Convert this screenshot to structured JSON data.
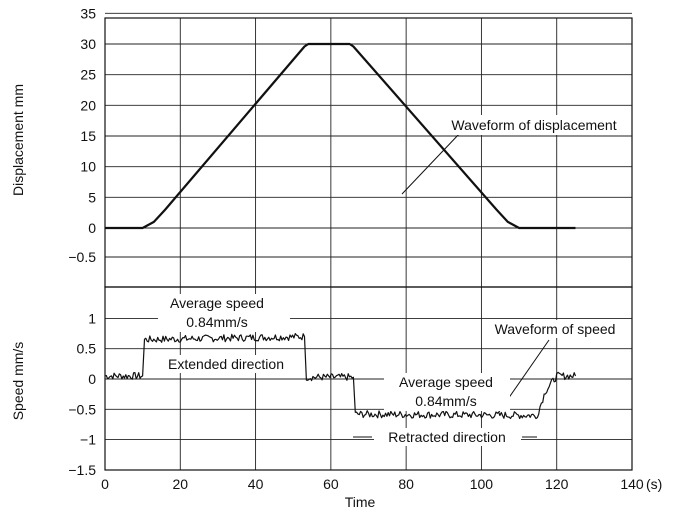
{
  "chart_data": [
    {
      "type": "line",
      "panel": "top",
      "ylabel": "Displacement  mm",
      "xlim": [
        0,
        140
      ],
      "ylim": [
        -1,
        35
      ],
      "yticks": [
        "35",
        "30",
        "25",
        "20",
        "15",
        "10",
        "5",
        "0",
        "−0.5"
      ],
      "grid": true,
      "series": [
        {
          "name": "Waveform of displacement",
          "x": [
            0,
            10,
            13,
            16,
            53,
            54,
            65,
            66,
            104,
            107,
            110,
            125
          ],
          "y": [
            0,
            0,
            1,
            3,
            29.6,
            30,
            30,
            29.6,
            3,
            1,
            0,
            0
          ]
        }
      ],
      "annotations": [
        {
          "text": "Waveform of displacement",
          "target_x": 101,
          "target_y": 9
        }
      ]
    },
    {
      "type": "line",
      "panel": "bottom",
      "ylabel": "Speed  mm/s",
      "xlabel": "Time",
      "xunit": "(s)",
      "xlim": [
        0,
        140
      ],
      "ylim": [
        -1.5,
        1
      ],
      "xticks": [
        "0",
        "20",
        "40",
        "60",
        "80",
        "100",
        "120",
        "140"
      ],
      "yticks": [
        "1",
        "0.5",
        "0",
        "−0.5",
        "−1",
        "−1.5"
      ],
      "grid": true,
      "series": [
        {
          "name": "Waveform of speed",
          "x": [
            0,
            10,
            10.5,
            53,
            53.5,
            66,
            66.5,
            114,
            114.5,
            117,
            120,
            125
          ],
          "y": [
            0.05,
            0.05,
            0.65,
            0.7,
            0.03,
            0.03,
            -0.58,
            -0.6,
            -0.65,
            -0.2,
            0.05,
            0.05
          ],
          "noise": 0.06
        }
      ],
      "annotations": [
        {
          "text": "Average speed",
          "line2": "0.84mm/s"
        },
        {
          "text": "Extended direction"
        },
        {
          "text": "Average speed",
          "line2": "0.84mm/s"
        },
        {
          "text": "Retracted direction"
        },
        {
          "text": "Waveform of speed"
        }
      ]
    }
  ]
}
